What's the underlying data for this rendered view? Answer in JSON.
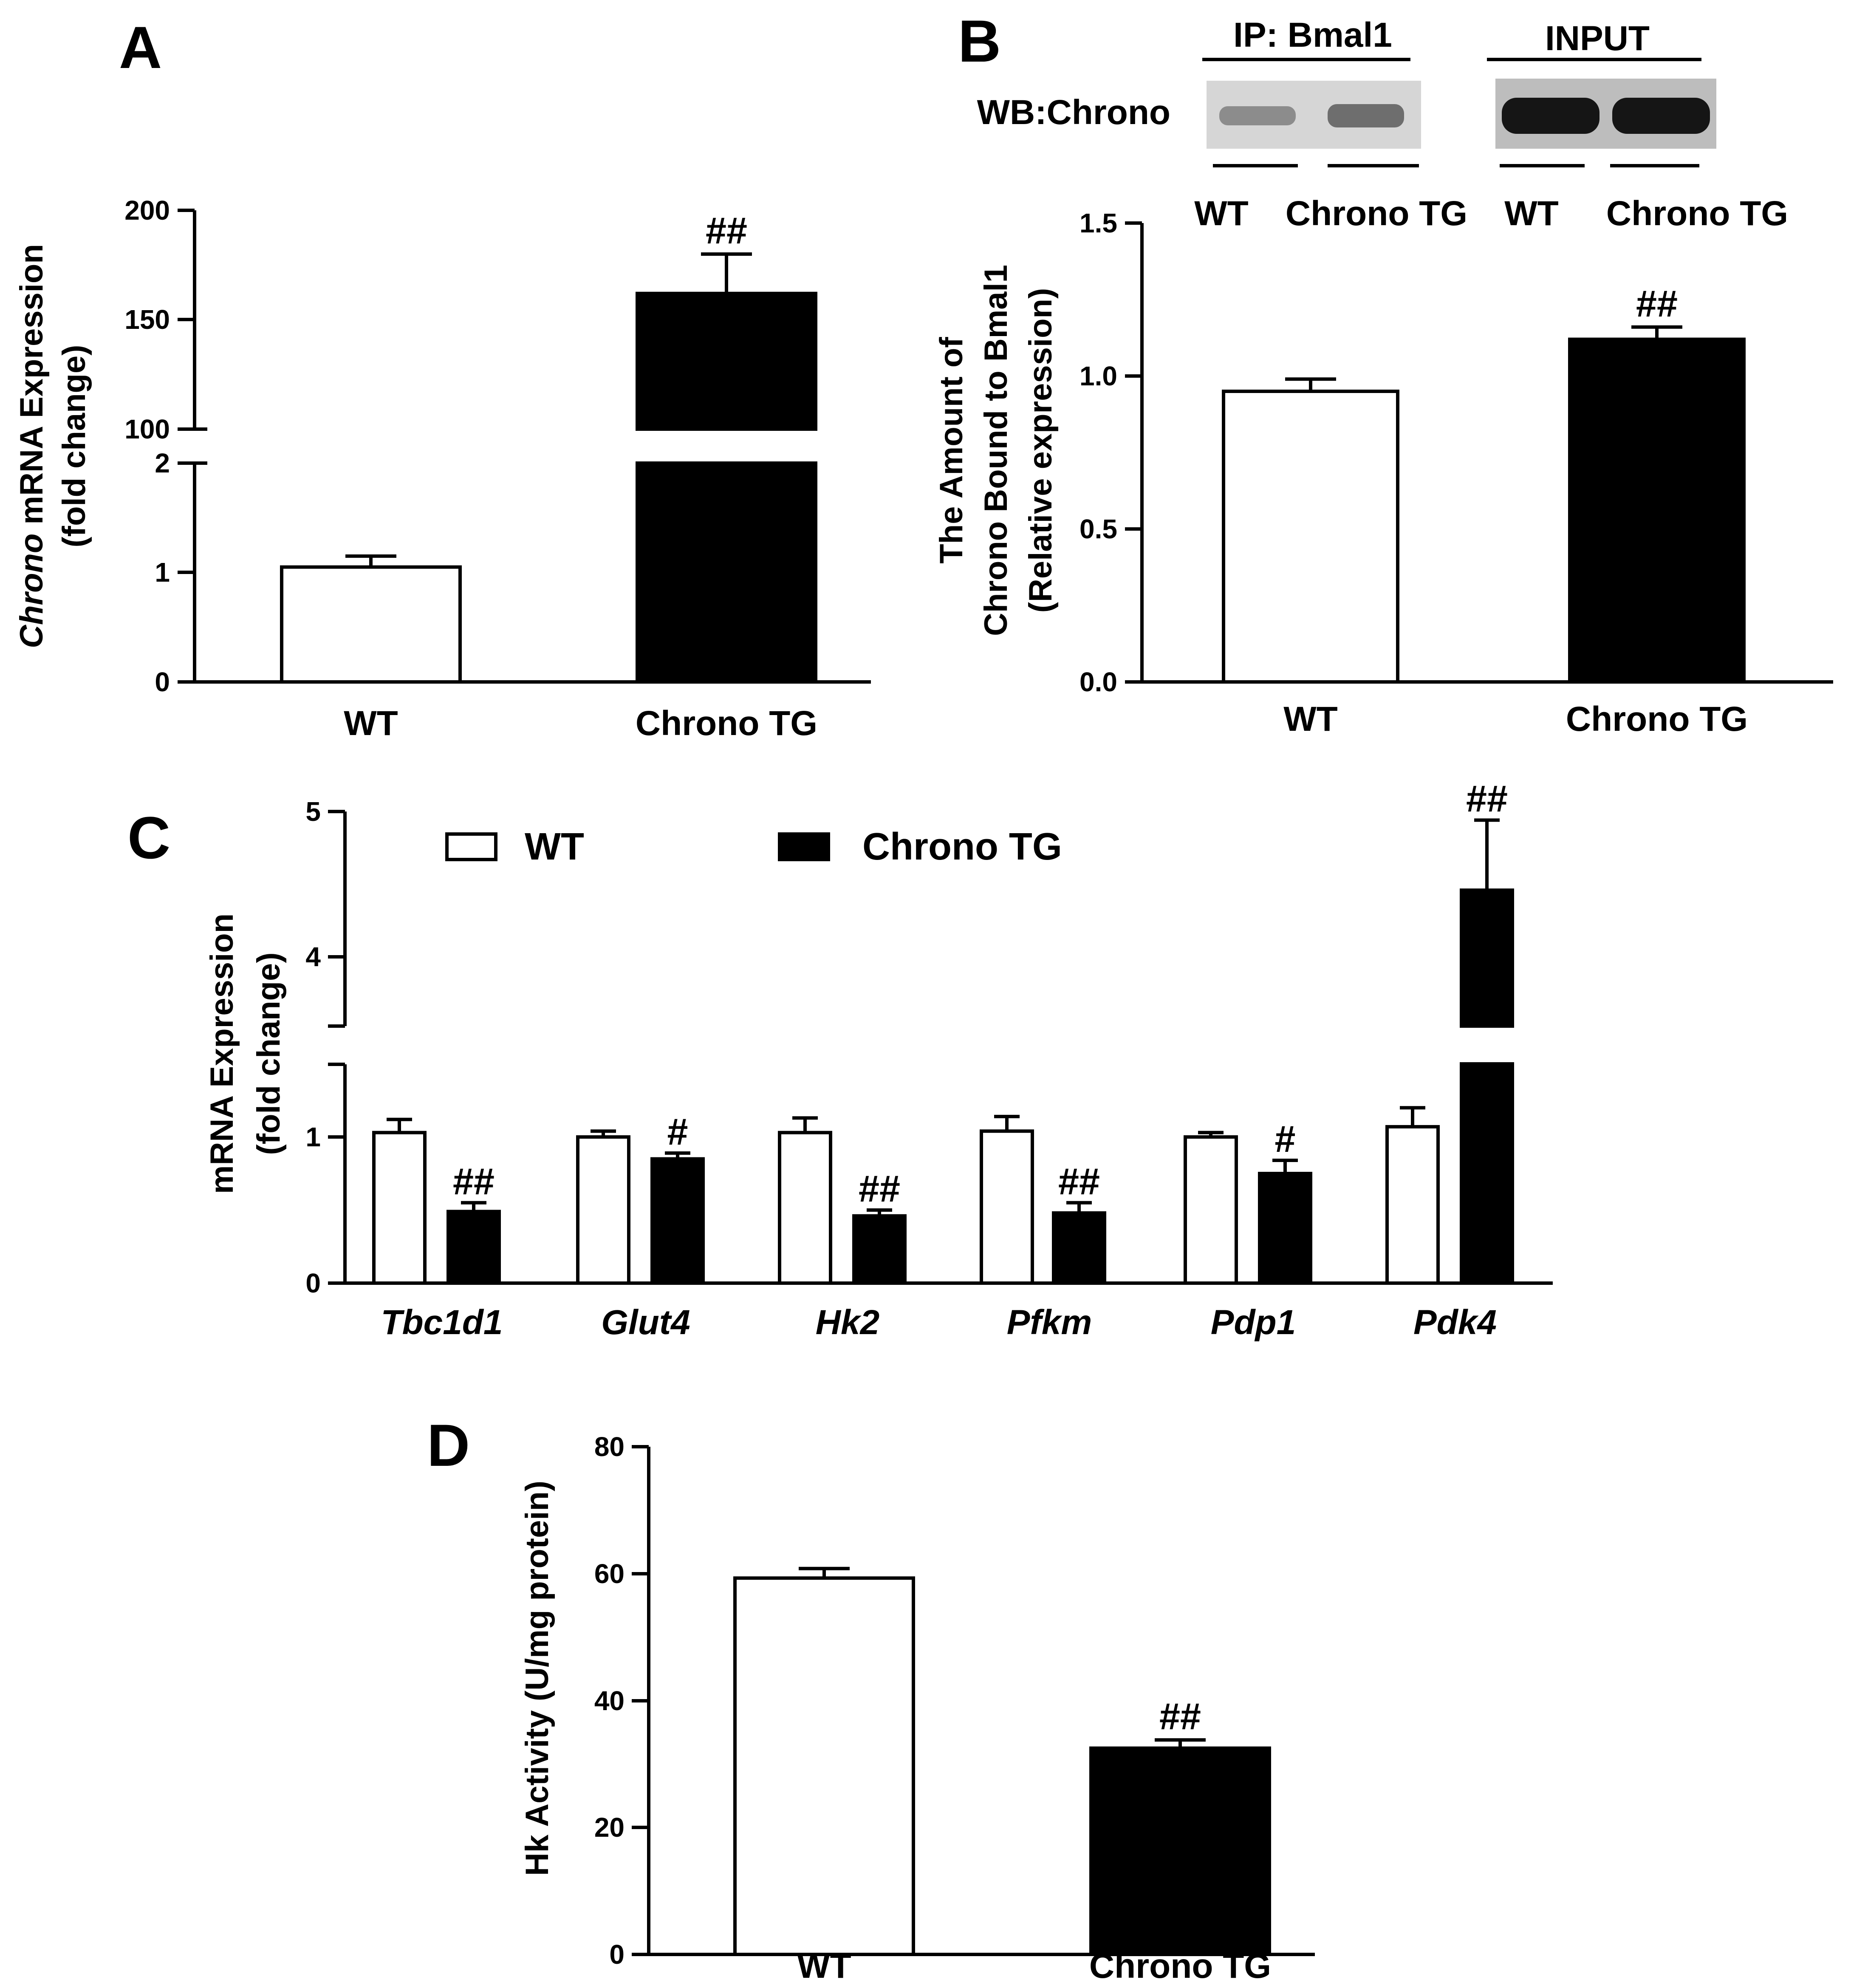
{
  "chart_data": [
    {
      "id": "A",
      "type": "bar",
      "panel_label": "A",
      "ylabel_italic": "Chrono",
      "ylabel_rest": " mRNA Expression",
      "ylabel2": "(fold change)",
      "categories": [
        "WT",
        "Chrono TG"
      ],
      "series": [
        {
          "name": "Fold change",
          "values": [
            1.05,
            162
          ]
        }
      ],
      "errors": [
        0.1,
        18
      ],
      "colors": [
        "#ffffff",
        "#000000"
      ],
      "y_axis_break": {
        "lower": [
          0,
          2
        ],
        "upper": [
          100,
          200
        ]
      },
      "yticks_lower": [
        "0",
        "1",
        "2"
      ],
      "yticks_upper": [
        "100",
        "150",
        "200"
      ],
      "annotations": [
        "",
        "##"
      ]
    },
    {
      "id": "B",
      "type": "bar",
      "panel_label": "B",
      "ylabel_lines": [
        "The Amount of",
        "Chrono Bound to Bmal1",
        "(Relative expression)"
      ],
      "categories": [
        "WT",
        "Chrono TG"
      ],
      "series": [
        {
          "name": "Relative expression",
          "values": [
            0.95,
            1.12
          ]
        }
      ],
      "errors": [
        0.04,
        0.04
      ],
      "colors": [
        "#ffffff",
        "#000000"
      ],
      "ylim": [
        0,
        1.5
      ],
      "yticks": [
        "0.0",
        "0.5",
        "1.0",
        "1.5"
      ],
      "annotations": [
        "",
        "##"
      ],
      "blot": {
        "ip_label": "IP: Bmal1",
        "input_label": "INPUT",
        "wb_label": "WB:Chrono",
        "lane_labels": [
          "WT",
          "Chrono TG",
          "WT",
          "Chrono TG"
        ]
      }
    },
    {
      "id": "C",
      "type": "bar",
      "panel_label": "C",
      "ylabel_lines": [
        "mRNA Expression",
        "(fold change)"
      ],
      "categories": [
        "Tbc1d1",
        "Glut4",
        "Hk2",
        "Pfkm",
        "Pdp1",
        "Pdk4"
      ],
      "series": [
        {
          "name": "WT",
          "values": [
            1.03,
            1.0,
            1.03,
            1.04,
            1.0,
            1.07
          ],
          "errors": [
            0.09,
            0.04,
            0.1,
            0.1,
            0.03,
            0.13
          ],
          "color": "#ffffff"
        },
        {
          "name": "Chrono TG",
          "values": [
            0.49,
            0.85,
            0.46,
            0.48,
            0.75,
            4.45
          ],
          "errors": [
            0.06,
            0.04,
            0.04,
            0.07,
            0.09,
            0.49
          ],
          "color": "#000000"
        }
      ],
      "y_axis_break": {
        "lower": [
          0,
          1.5
        ],
        "upper": [
          3.5,
          5
        ]
      },
      "yticks_lower": [
        "0",
        "1"
      ],
      "yticks_upper": [
        "4",
        "5"
      ],
      "annotations_tg": [
        "##",
        "#",
        "##",
        "##",
        "#",
        "##"
      ]
    },
    {
      "id": "D",
      "type": "bar",
      "panel_label": "D",
      "ylabel": "Hk Activity (U/mg protein)",
      "categories": [
        "WT",
        "Chrono TG"
      ],
      "series": [
        {
          "name": "Hk Activity",
          "values": [
            59.3,
            32.5
          ]
        }
      ],
      "errors": [
        1.5,
        1.3
      ],
      "colors": [
        "#ffffff",
        "#000000"
      ],
      "ylim": [
        0,
        80
      ],
      "yticks": [
        "0",
        "20",
        "40",
        "60",
        "80"
      ],
      "annotations": [
        "",
        "##"
      ]
    }
  ]
}
